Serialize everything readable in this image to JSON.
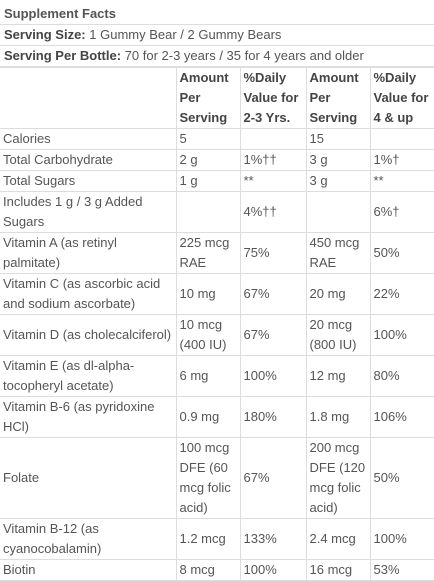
{
  "header": {
    "title": "Supplement Facts",
    "serving_size": {
      "label": "Serving Size:",
      "value": "1 Gummy Bear / 2 Gummy Bears"
    },
    "serving_per_bottle": {
      "label": "Serving Per Bottle:",
      "value": "70 for 2-3 years / 35 for 4 years and older"
    }
  },
  "table": {
    "columns": [
      "Amount Per Serving",
      "%Daily Value for 2-3 Yrs.",
      "Amount Per Serving",
      "%Daily Value for 4 & up"
    ],
    "rows": [
      [
        "Calories",
        "5",
        "",
        "15",
        ""
      ],
      [
        "Total Carbohydrate",
        "2 g",
        "1%††",
        "3 g",
        "1%†"
      ],
      [
        "Total Sugars",
        "1 g",
        "**",
        "3 g",
        "**"
      ],
      [
        "Includes 1 g / 3 g Added Sugars",
        "",
        "4%††",
        "",
        "6%†"
      ],
      [
        "Vitamin A (as retinyl palmitate)",
        "225 mcg RAE",
        "75%",
        "450 mcg RAE",
        "50%"
      ],
      [
        "Vitamin C (as ascorbic acid and sodium ascorbate)",
        "10 mg",
        "67%",
        "20 mg",
        "22%"
      ],
      [
        "Vitamin D (as cholecalciferol)",
        "10 mcg (400 IU)",
        "67%",
        "20 mcg (800 IU)",
        "100%"
      ],
      [
        "Vitamin E (as dl-alpha-tocopheryl acetate)",
        "6 mg",
        "100%",
        "12 mg",
        "80%"
      ],
      [
        "Vitamin B-6 (as pyridoxine HCl)",
        "0.9 mg",
        "180%",
        "1.8 mg",
        "106%"
      ],
      [
        "Folate",
        "100 mcg DFE (60 mcg folic acid)",
        "67%",
        "200 mcg DFE (120 mcg folic acid)",
        "50%"
      ],
      [
        "Vitamin B-12 (as cyanocobalamin)",
        "1.2 mcg",
        "133%",
        "2.4 mcg",
        "100%"
      ],
      [
        "Biotin",
        "8 mcg",
        "100%",
        "16 mcg",
        "53%"
      ]
    ]
  }
}
